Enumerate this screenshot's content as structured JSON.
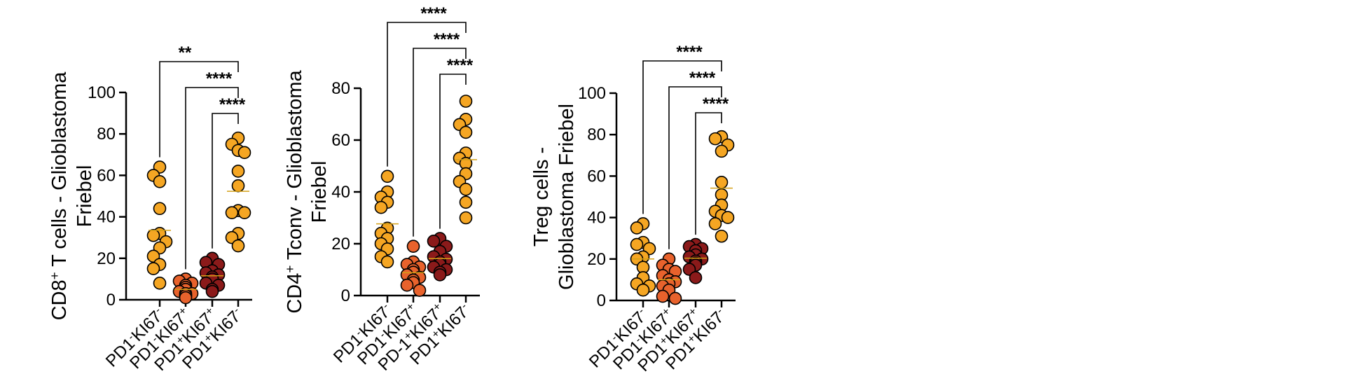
{
  "chart_data": [
    {
      "type": "scatter",
      "ylabel_html": "CD8<tspan baseline-shift='super' font-size='65%'>+</tspan> T cells - Glioblastoma",
      "ylabel_line1": "CD8+ T cells - Glioblastoma",
      "ylabel_line2": "Friebel",
      "ylim": [
        0,
        100
      ],
      "yticks": [
        "0",
        "20",
        "40",
        "60",
        "80",
        "100"
      ],
      "categories": [
        "PD1-KI67-",
        "PD1-KI67+",
        "PD1+KI67+",
        "PD1+KI67-"
      ],
      "category_html": [
        "PD1<tspan baseline-shift='super' font-size='65%'>-</tspan>KI67<tspan baseline-shift='super' font-size='65%'>-</tspan>",
        "PD1<tspan baseline-shift='super' font-size='65%'>-</tspan>KI67<tspan baseline-shift='super' font-size='65%'>+</tspan>",
        "PD1<tspan baseline-shift='super' font-size='65%'>+</tspan>KI67<tspan baseline-shift='super' font-size='65%'>+</tspan>",
        "PD1<tspan baseline-shift='super' font-size='65%'>+</tspan>KI67<tspan baseline-shift='super' font-size='65%'>-</tspan>"
      ],
      "series": [
        {
          "color": "#f5a623",
          "values": [
            64,
            60,
            57,
            44,
            32,
            31,
            28,
            25,
            21,
            17,
            15,
            8
          ]
        },
        {
          "color": "#e8622c",
          "values": [
            10,
            9,
            8,
            7,
            6,
            5,
            4,
            3,
            3,
            2,
            2,
            1
          ]
        },
        {
          "color": "#8b1a1a",
          "values": [
            20,
            18,
            17,
            14,
            13,
            12,
            11,
            10,
            8,
            7,
            5,
            4
          ]
        },
        {
          "color": "#f5a623",
          "values": [
            78,
            75,
            72,
            71,
            62,
            55,
            43,
            42,
            42,
            32,
            30,
            26
          ]
        }
      ],
      "comparisons": [
        {
          "from": 0,
          "to": 3,
          "label": "**"
        },
        {
          "from": 1,
          "to": 3,
          "label": "****"
        },
        {
          "from": 2,
          "to": 3,
          "label": "****"
        }
      ]
    },
    {
      "type": "scatter",
      "ylabel_html": "CD4<tspan baseline-shift='super' font-size='65%'>+</tspan> Tconv - Glioblastoma",
      "ylabel_line1": "CD4+ Tconv - Glioblastoma",
      "ylabel_line2": "Friebel",
      "ylim": [
        0,
        80
      ],
      "yticks": [
        "0",
        "20",
        "40",
        "60",
        "80"
      ],
      "categories": [
        "PD1-KI67-",
        "PD1-KI67+",
        "PD-1+KI67+",
        "PD1+KI67-"
      ],
      "category_html": [
        "PD1<tspan baseline-shift='super' font-size='65%'>-</tspan>KI67<tspan baseline-shift='super' font-size='65%'>-</tspan>",
        "PD1<tspan baseline-shift='super' font-size='65%'>-</tspan>KI67<tspan baseline-shift='super' font-size='65%'>+</tspan>",
        "PD-1<tspan baseline-shift='super' font-size='65%'>+</tspan>KI67<tspan baseline-shift='super' font-size='65%'>+</tspan>",
        "PD1<tspan baseline-shift='super' font-size='65%'>+</tspan>KI67<tspan baseline-shift='super' font-size='65%'>-</tspan>"
      ],
      "series": [
        {
          "color": "#f5a623",
          "values": [
            46,
            40,
            38,
            36,
            34,
            26,
            24,
            22,
            20,
            18,
            15,
            13
          ]
        },
        {
          "color": "#e8622c",
          "values": [
            19,
            13,
            12,
            11,
            10,
            9,
            8,
            7,
            6,
            5,
            4,
            2
          ]
        },
        {
          "color": "#8b1a1a",
          "values": [
            22,
            21,
            19,
            17,
            15,
            14,
            13,
            12,
            11,
            10,
            9,
            8
          ]
        },
        {
          "color": "#f5a623",
          "values": [
            75,
            68,
            66,
            63,
            55,
            53,
            51,
            47,
            44,
            41,
            36,
            30
          ]
        }
      ],
      "comparisons": [
        {
          "from": 0,
          "to": 3,
          "label": "****"
        },
        {
          "from": 1,
          "to": 3,
          "label": "****"
        },
        {
          "from": 2,
          "to": 3,
          "label": "****"
        }
      ]
    },
    {
      "type": "scatter",
      "ylabel_html": "Treg cells -",
      "ylabel_line1": "Treg cells -",
      "ylabel_line2": "Glioblastoma Friebel",
      "ylim": [
        0,
        100
      ],
      "yticks": [
        "0",
        "20",
        "40",
        "60",
        "80",
        "100"
      ],
      "categories": [
        "PD1-KI67-",
        "PD1-KI67+",
        "PD1+KI67+",
        "PD1+KI67-"
      ],
      "category_html": [
        "PD1<tspan baseline-shift='super' font-size='65%'>-</tspan>KI67<tspan baseline-shift='super' font-size='65%'>-</tspan>",
        "PD1<tspan baseline-shift='super' font-size='65%'>-</tspan>KI67<tspan baseline-shift='super' font-size='65%'>+</tspan>",
        "PD1<tspan baseline-shift='super' font-size='65%'>+</tspan>KI67<tspan baseline-shift='super' font-size='65%'>+</tspan>",
        "PD1<tspan baseline-shift='super' font-size='65%'>+</tspan>KI67<tspan baseline-shift='super' font-size='65%'>-</tspan>"
      ],
      "series": [
        {
          "color": "#f5a623",
          "values": [
            37,
            35,
            28,
            27,
            25,
            21,
            20,
            16,
            11,
            8,
            7,
            5
          ]
        },
        {
          "color": "#e8622c",
          "values": [
            20,
            17,
            15,
            14,
            12,
            10,
            9,
            8,
            7,
            5,
            2,
            1
          ]
        },
        {
          "color": "#8b1a1a",
          "values": [
            27,
            26,
            25,
            24,
            22,
            21,
            20,
            19,
            18,
            17,
            15,
            11
          ]
        },
        {
          "color": "#f5a623",
          "values": [
            79,
            78,
            75,
            72,
            57,
            51,
            46,
            43,
            41,
            40,
            37,
            31
          ]
        }
      ],
      "comparisons": [
        {
          "from": 0,
          "to": 3,
          "label": "****"
        },
        {
          "from": 1,
          "to": 3,
          "label": "****"
        },
        {
          "from": 2,
          "to": 3,
          "label": "****"
        }
      ]
    }
  ]
}
